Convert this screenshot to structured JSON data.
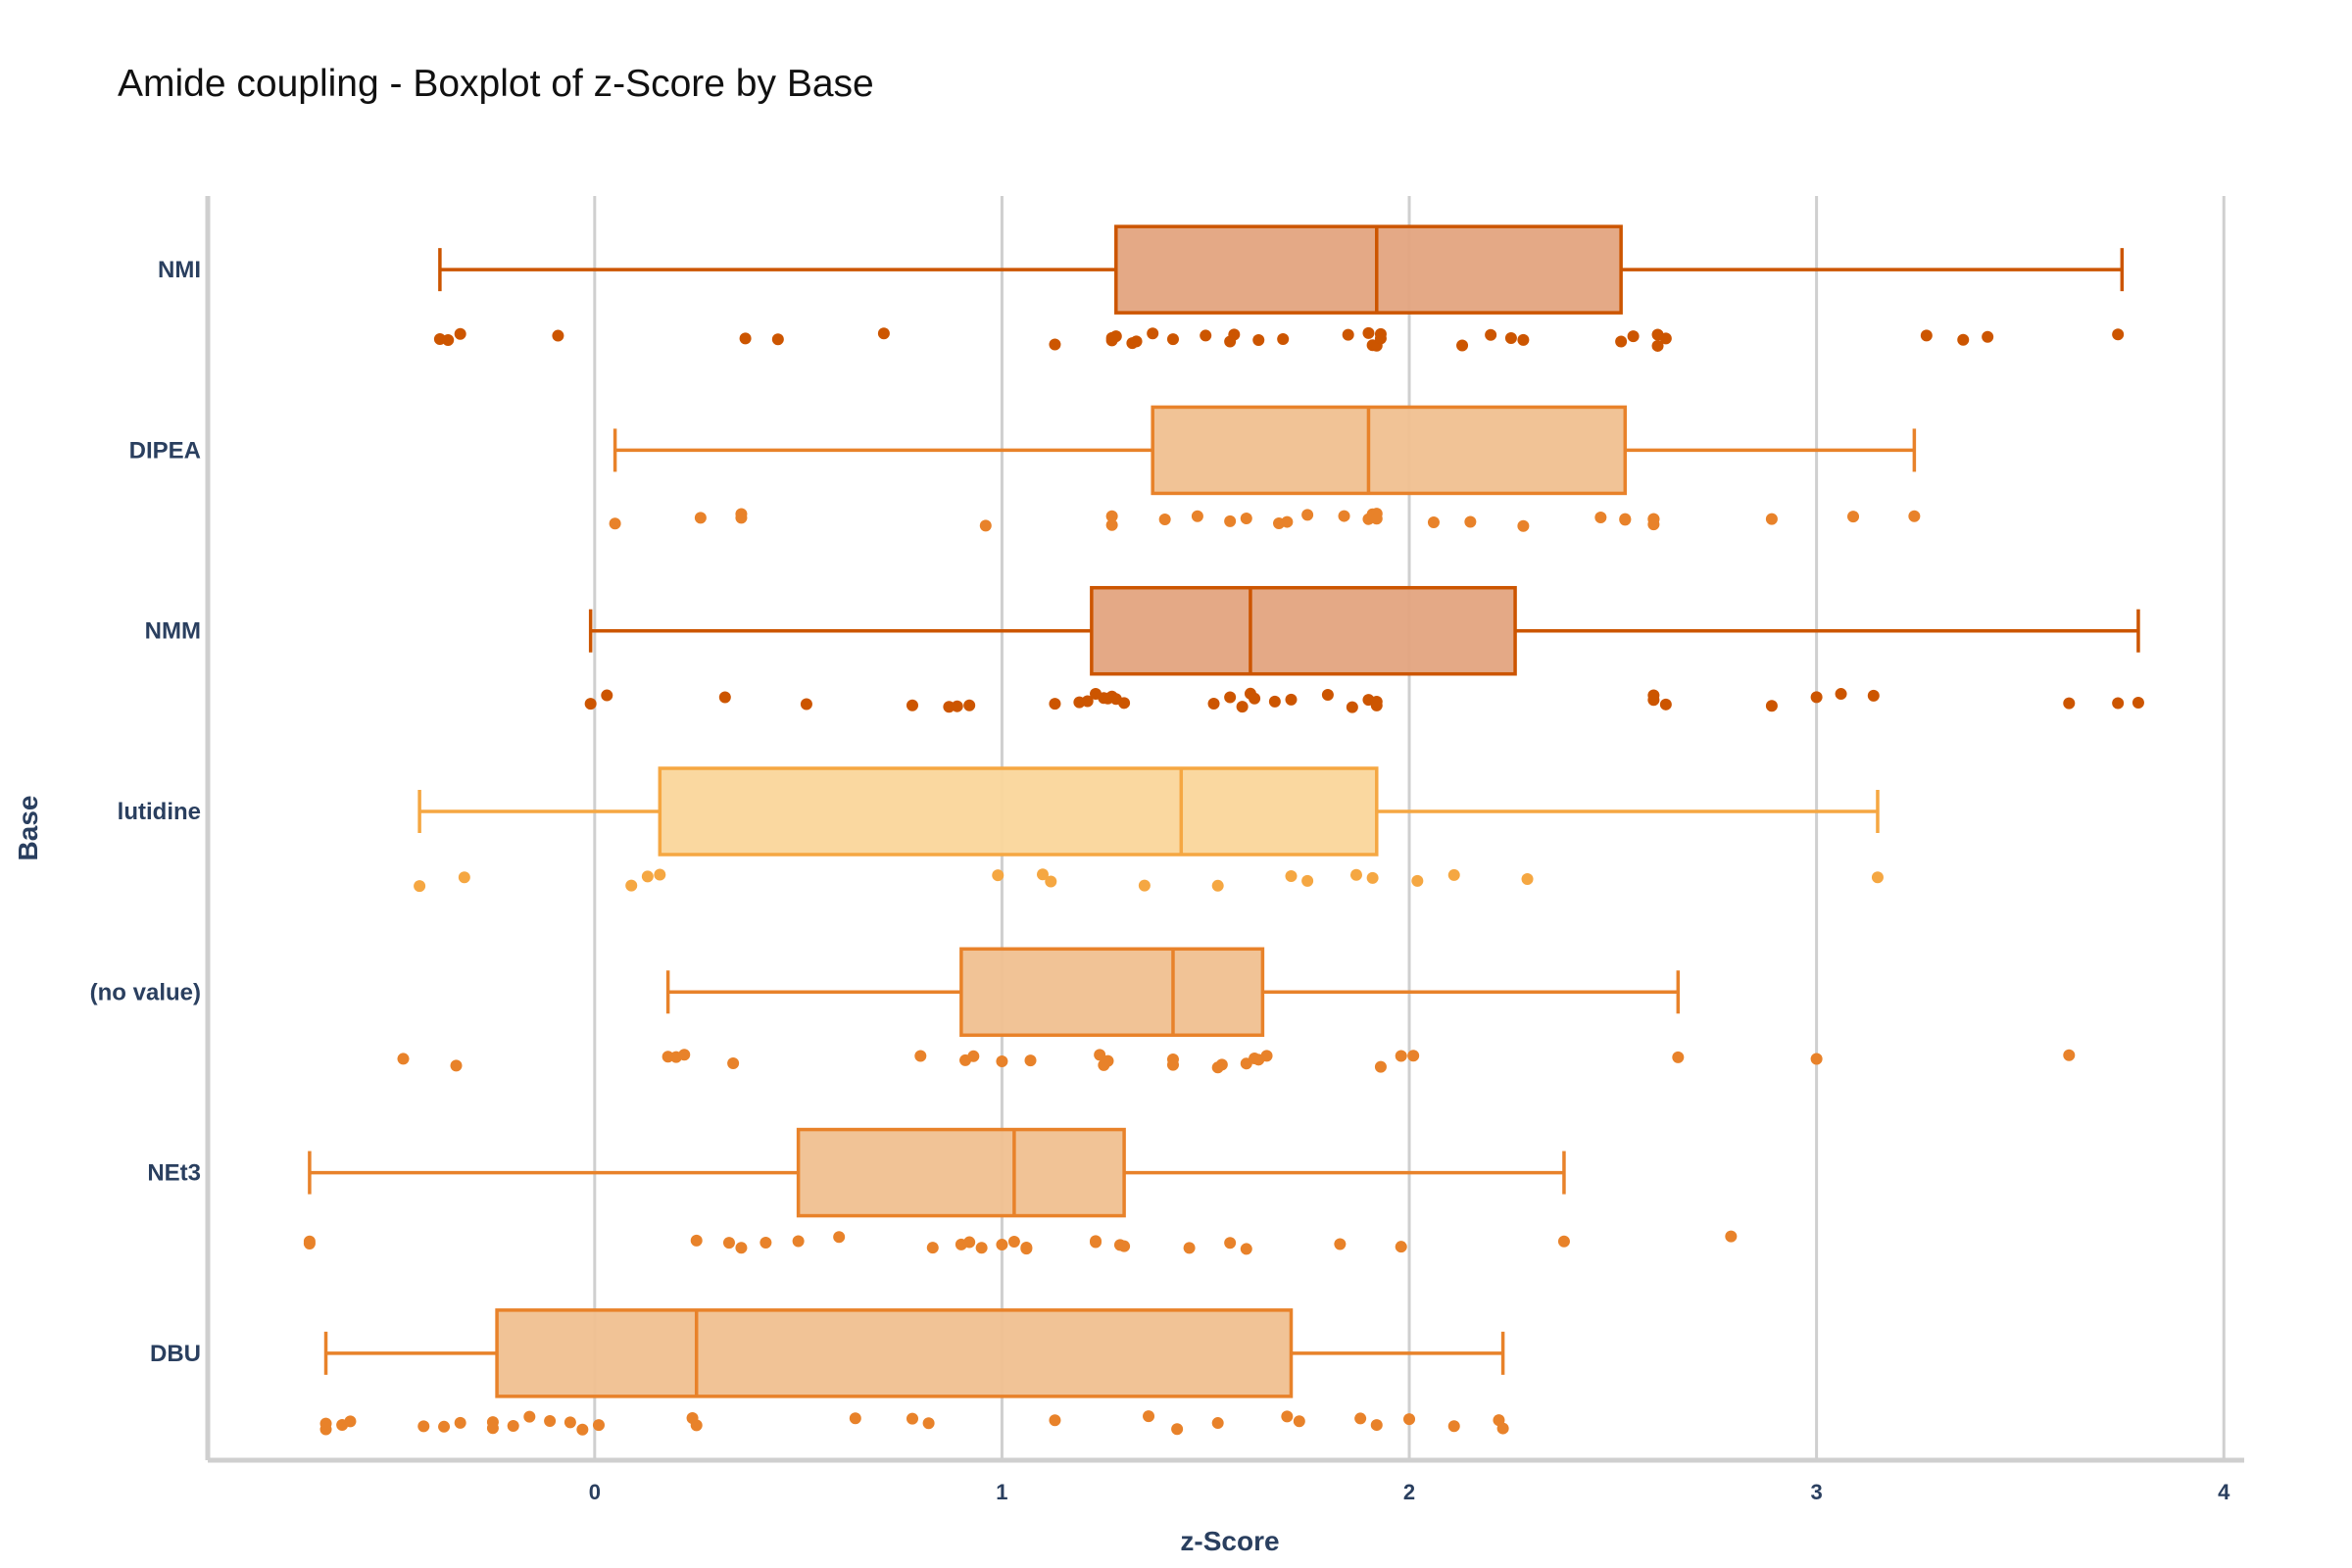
{
  "chart_data": {
    "type": "box",
    "orientation": "horizontal",
    "title": "Amide coupling - Boxplot of z-Score by Base",
    "xlabel": "z-Score",
    "ylabel": "Base",
    "xlim": [
      -0.95,
      4.05
    ],
    "xticks": [
      "0",
      "1",
      "2",
      "3",
      "4"
    ],
    "grid": "vertical",
    "categories": [
      "NMI",
      "DIPEA",
      "NMM",
      "lutidine",
      "(no value)",
      "NEt3",
      "DBU"
    ],
    "series": [
      {
        "category": "NMI",
        "color": "#cc5500",
        "fill": "#e3a47f",
        "min": -0.38,
        "q1": 1.28,
        "median": 1.92,
        "q3": 2.52,
        "max": 3.75,
        "points": [
          -0.38,
          -0.36,
          -0.33,
          -0.09,
          0.37,
          0.45,
          0.71,
          1.13,
          1.27,
          1.27,
          1.28,
          1.32,
          1.33,
          1.37,
          1.42,
          1.5,
          1.56,
          1.57,
          1.63,
          1.69,
          1.85,
          1.9,
          1.91,
          1.92,
          1.93,
          1.93,
          2.13,
          2.2,
          2.25,
          2.28,
          2.52,
          2.55,
          2.61,
          2.61,
          2.63,
          3.27,
          3.36,
          3.42,
          3.74
        ]
      },
      {
        "category": "DIPEA",
        "color": "#e8822a",
        "fill": "#f0c090",
        "min": 0.05,
        "q1": 1.37,
        "median": 1.9,
        "q3": 2.53,
        "max": 3.24,
        "points": [
          0.05,
          0.26,
          0.36,
          0.36,
          0.96,
          1.27,
          1.27,
          1.4,
          1.48,
          1.56,
          1.6,
          1.68,
          1.7,
          1.75,
          1.84,
          1.9,
          1.91,
          1.92,
          1.92,
          2.06,
          2.15,
          2.28,
          2.47,
          2.53,
          2.53,
          2.6,
          2.6,
          2.6,
          2.89,
          3.09,
          3.24
        ]
      },
      {
        "category": "NMM",
        "color": "#cc5500",
        "fill": "#e3a47f",
        "min": -0.01,
        "q1": 1.22,
        "median": 1.61,
        "q3": 2.26,
        "max": 3.79,
        "points": [
          -0.01,
          0.03,
          0.32,
          0.52,
          0.78,
          0.87,
          0.89,
          0.92,
          1.13,
          1.19,
          1.21,
          1.23,
          1.25,
          1.26,
          1.27,
          1.28,
          1.3,
          1.52,
          1.56,
          1.59,
          1.61,
          1.62,
          1.67,
          1.71,
          1.8,
          1.86,
          1.9,
          1.92,
          1.92,
          2.6,
          2.6,
          2.63,
          2.89,
          3.0,
          3.06,
          3.14,
          3.62,
          3.74,
          3.79
        ]
      },
      {
        "category": "lutidine",
        "color": "#f5a742",
        "fill": "#fad69b",
        "min": -0.43,
        "q1": 0.16,
        "median": 1.44,
        "q3": 1.92,
        "max": 3.15,
        "points": [
          -0.43,
          -0.32,
          0.09,
          0.13,
          0.16,
          0.99,
          1.1,
          1.12,
          1.35,
          1.53,
          1.71,
          1.75,
          1.87,
          1.91,
          2.02,
          2.11,
          2.29,
          3.15
        ]
      },
      {
        "category": "(no value)",
        "color": "#e8822a",
        "fill": "#f0c090",
        "min": 0.18,
        "q1": 0.9,
        "median": 1.42,
        "q3": 1.64,
        "max": 2.66,
        "points": [
          -0.47,
          -0.34,
          0.18,
          0.2,
          0.22,
          0.34,
          0.8,
          0.91,
          0.93,
          1.0,
          1.07,
          1.24,
          1.25,
          1.26,
          1.42,
          1.42,
          1.53,
          1.54,
          1.6,
          1.62,
          1.63,
          1.65,
          1.93,
          1.98,
          2.01,
          2.66,
          3.0,
          3.62
        ]
      },
      {
        "category": "NEt3",
        "color": "#e8822a",
        "fill": "#f0c090",
        "min": -0.7,
        "q1": 0.5,
        "median": 1.03,
        "q3": 1.3,
        "max": 2.38,
        "points": [
          -0.7,
          -0.7,
          0.25,
          0.33,
          0.36,
          0.42,
          0.5,
          0.6,
          0.83,
          0.9,
          0.92,
          0.95,
          1.0,
          1.03,
          1.06,
          1.06,
          1.23,
          1.23,
          1.29,
          1.3,
          1.46,
          1.56,
          1.6,
          1.83,
          1.98,
          2.38,
          2.79
        ]
      },
      {
        "category": "DBU",
        "color": "#e8822a",
        "fill": "#f0c090",
        "min": -0.66,
        "q1": -0.24,
        "median": 0.25,
        "q3": 1.71,
        "max": 2.23,
        "points": [
          -0.66,
          -0.66,
          -0.62,
          -0.6,
          -0.42,
          -0.37,
          -0.33,
          -0.25,
          -0.25,
          -0.2,
          -0.16,
          -0.11,
          -0.06,
          -0.03,
          0.01,
          0.24,
          0.25,
          0.64,
          0.78,
          0.82,
          1.13,
          1.36,
          1.43,
          1.53,
          1.7,
          1.73,
          1.88,
          1.92,
          2.0,
          2.11,
          2.22,
          2.23
        ]
      }
    ]
  }
}
